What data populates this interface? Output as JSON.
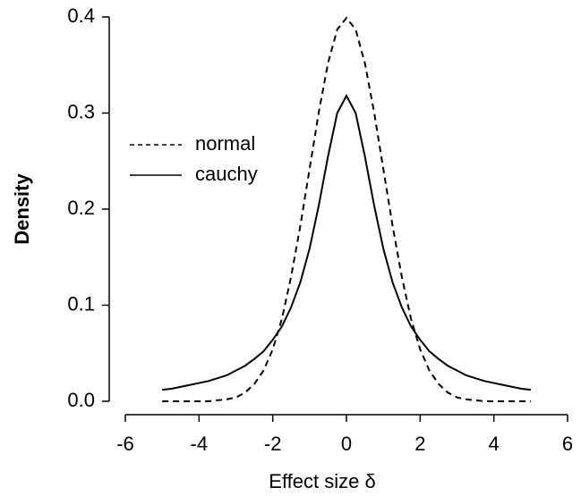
{
  "chart_data": {
    "type": "line",
    "xlabel": "Effect size δ",
    "ylabel": "Density",
    "x": [
      -5,
      -4.75,
      -4.5,
      -4.25,
      -4,
      -3.75,
      -3.5,
      -3.25,
      -3,
      -2.75,
      -2.5,
      -2.25,
      -2,
      -1.75,
      -1.5,
      -1.25,
      -1,
      -0.75,
      -0.5,
      -0.25,
      0,
      0.25,
      0.5,
      0.75,
      1,
      1.25,
      1.5,
      1.75,
      2,
      2.25,
      2.5,
      2.75,
      3,
      3.25,
      3.5,
      3.75,
      4,
      4.25,
      4.5,
      4.75,
      5
    ],
    "series": [
      {
        "name": "normal",
        "color": "#000000",
        "linestyle": "dashed",
        "values": [
          0,
          0,
          0,
          0,
          0,
          0,
          0.001,
          0.002,
          0.004,
          0.009,
          0.018,
          0.032,
          0.054,
          0.086,
          0.13,
          0.183,
          0.242,
          0.301,
          0.352,
          0.387,
          0.399,
          0.387,
          0.352,
          0.301,
          0.242,
          0.183,
          0.13,
          0.086,
          0.054,
          0.032,
          0.018,
          0.009,
          0.004,
          0.002,
          0.001,
          0,
          0,
          0,
          0,
          0,
          0
        ]
      },
      {
        "name": "cauchy",
        "color": "#000000",
        "linestyle": "solid",
        "values": [
          0.012,
          0.013,
          0.015,
          0.017,
          0.019,
          0.021,
          0.024,
          0.027,
          0.032,
          0.037,
          0.044,
          0.052,
          0.064,
          0.078,
          0.098,
          0.124,
          0.159,
          0.204,
          0.255,
          0.3,
          0.318,
          0.3,
          0.255,
          0.204,
          0.159,
          0.124,
          0.098,
          0.078,
          0.064,
          0.052,
          0.044,
          0.037,
          0.032,
          0.027,
          0.024,
          0.021,
          0.019,
          0.017,
          0.015,
          0.013,
          0.012
        ]
      }
    ],
    "xlim": [
      -6,
      6
    ],
    "xticks": [
      -6,
      -4,
      -2,
      0,
      2,
      4,
      6
    ],
    "ylim": [
      0,
      0.4
    ],
    "yticks": [
      {
        "value": 0,
        "label": "0.0"
      },
      0.1,
      0.2,
      0.3,
      0.4
    ],
    "legend": "left",
    "grid": false
  }
}
